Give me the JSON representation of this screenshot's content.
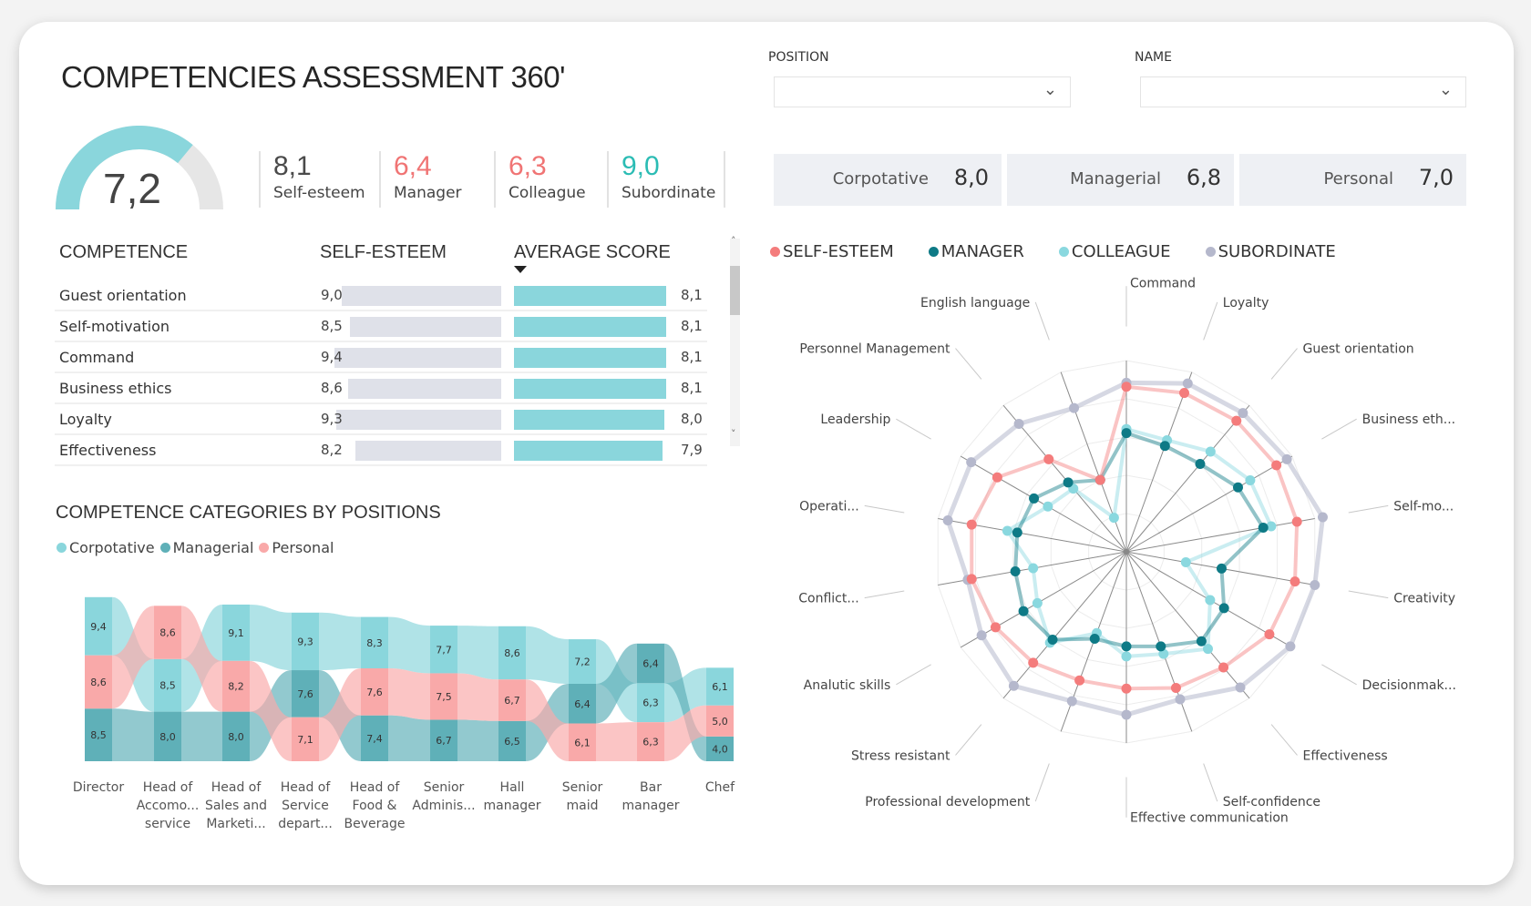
{
  "title": "COMPETENCIES ASSESSMENT 360'",
  "gauge": {
    "value": "7,2",
    "fraction": 0.72,
    "fill": "#8ad6dc",
    "track": "#e6e6e6"
  },
  "kpis": [
    {
      "value": "8,1",
      "label": "Self-esteem",
      "color": "#4a4a4a"
    },
    {
      "value": "6,4",
      "label": "Manager",
      "color": "#f07474"
    },
    {
      "value": "6,3",
      "label": "Colleague",
      "color": "#f07474"
    },
    {
      "value": "9,0",
      "label": "Subordinate",
      "color": "#2bbcb4"
    }
  ],
  "filters": {
    "position_label": "POSITION",
    "position_value": "",
    "name_label": "NAME",
    "name_value": ""
  },
  "categories": [
    {
      "label": "Corpotative",
      "value": "8,0"
    },
    {
      "label": "Managerial",
      "value": "6,8"
    },
    {
      "label": "Personal",
      "value": "7,0"
    }
  ],
  "table": {
    "headers": [
      "COMPETENCE",
      "SELF-ESTEEM",
      "AVERAGE SCORE"
    ],
    "sort_icon": "sort-descending",
    "rows": [
      {
        "name": "Guest orientation",
        "self": "9,0",
        "self_v": 9.0,
        "avg": "8,1",
        "avg_v": 8.1
      },
      {
        "name": "Self-motivation",
        "self": "8,5",
        "self_v": 8.5,
        "avg": "8,1",
        "avg_v": 8.1
      },
      {
        "name": "Command",
        "self": "9,4",
        "self_v": 9.4,
        "avg": "8,1",
        "avg_v": 8.1
      },
      {
        "name": "Business ethics",
        "self": "8,6",
        "self_v": 8.6,
        "avg": "8,1",
        "avg_v": 8.1
      },
      {
        "name": "Loyalty",
        "self": "9,3",
        "self_v": 9.3,
        "avg": "8,0",
        "avg_v": 8.0
      },
      {
        "name": "Effectiveness",
        "self": "8,2",
        "self_v": 8.2,
        "avg": "7,9",
        "avg_v": 7.9
      }
    ]
  },
  "chart_data": [
    {
      "type": "ribbon",
      "title": "COMPETENCE CATEGORIES BY POSITIONS",
      "series": [
        {
          "name": "Corpotative",
          "color": "#8ad6dc"
        },
        {
          "name": "Managerial",
          "color": "#5fb0b8"
        },
        {
          "name": "Personal",
          "color": "#f9a9a9"
        }
      ],
      "categories": [
        "Director",
        "Head of Accomo... service",
        "Head of Sales and Marketi...",
        "Head of Service depart...",
        "Head of Food & Beverage",
        "Senior Adminis...",
        "Hall manager",
        "Senior maid",
        "Bar manager",
        "Chef"
      ],
      "category_lines": [
        [
          "Director"
        ],
        [
          "Head of",
          "Accomo...",
          "service"
        ],
        [
          "Head of",
          "Sales and",
          "Marketi..."
        ],
        [
          "Head of",
          "Service",
          "depart..."
        ],
        [
          "Head of",
          "Food &",
          "Beverage"
        ],
        [
          "Senior",
          "Adminis..."
        ],
        [
          "Hall",
          "manager"
        ],
        [
          "Senior",
          "maid"
        ],
        [
          "Bar",
          "manager"
        ],
        [
          "Chef"
        ]
      ],
      "values": {
        "Corpotative": [
          9.4,
          8.5,
          9.1,
          9.3,
          8.3,
          7.7,
          8.6,
          7.2,
          6.3,
          6.1
        ],
        "Managerial": [
          8.5,
          8.0,
          8.0,
          7.6,
          7.4,
          6.7,
          6.5,
          6.4,
          6.4,
          4.0
        ],
        "Personal": [
          8.6,
          8.6,
          8.2,
          7.1,
          7.6,
          7.5,
          6.7,
          6.1,
          6.3,
          5.0
        ]
      }
    },
    {
      "type": "radar",
      "range": [
        0,
        10
      ],
      "axes": [
        "Command",
        "Loyalty",
        "Guest orientation",
        "Business eth...",
        "Self-mo...",
        "Creativity",
        "Decisionmak...",
        "Effectiveness",
        "Self-confidence",
        "Effective communication",
        "Professional development",
        "Stress resistant",
        "Analutic skills",
        "Conflict...",
        "Operati...",
        "Leadership",
        "Personnel Management",
        "English language"
      ],
      "series": [
        {
          "name": "SELF-ESTEEM",
          "color": "#f47c7c",
          "values": [
            8.2,
            8.4,
            8.5,
            8.6,
            8.6,
            8.5,
            8.2,
            7.5,
            7.2,
            6.8,
            6.8,
            7.2,
            7.5,
            7.8,
            7.8,
            7.4,
            6.0,
            3.8
          ]
        },
        {
          "name": "MANAGER",
          "color": "#0e7a86",
          "values": [
            5.9,
            5.6,
            5.7,
            6.4,
            6.9,
            4.8,
            5.6,
            5.8,
            5.0,
            4.7,
            4.6,
            5.7,
            5.9,
            5.6,
            5.5,
            5.3,
            4.5,
            3.8
          ]
        },
        {
          "name": "COLLEAGUE",
          "color": "#8ad8df",
          "values": [
            6.1,
            5.9,
            6.5,
            7.1,
            7.3,
            3.0,
            4.8,
            6.3,
            5.4,
            5.2,
            4.3,
            5.9,
            5.1,
            4.7,
            6.0,
            4.5,
            4.1,
            1.8
          ]
        },
        {
          "name": "SUBORDINATE",
          "color": "#b5b8cc",
          "values": [
            8.4,
            8.9,
            9.0,
            9.2,
            9.9,
            9.5,
            9.4,
            8.8,
            7.8,
            8.1,
            7.9,
            8.7,
            8.3,
            8.0,
            9.0,
            8.9,
            8.3,
            7.6
          ]
        }
      ]
    }
  ]
}
